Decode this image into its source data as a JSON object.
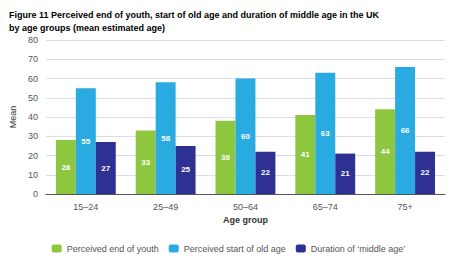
{
  "chart_data": {
    "type": "bar",
    "title": "Figure 11 Perceived end of youth, start of old age and duration of middle age in the UK\nby age groups (mean estimated age)",
    "categories": [
      "15–24",
      "25–49",
      "50–64",
      "65–74",
      "75+"
    ],
    "series": [
      {
        "name": "Perceived end of youth",
        "color": "#8dc63f",
        "values": [
          28,
          33,
          38,
          41,
          44
        ]
      },
      {
        "name": "Perceived start of old age",
        "color": "#29abe2",
        "values": [
          55,
          58,
          60,
          63,
          66
        ]
      },
      {
        "name": "Duration of ‘middle age’",
        "color": "#2e3192",
        "values": [
          27,
          25,
          22,
          21,
          22
        ]
      }
    ],
    "xlabel": "Age group",
    "ylabel": "Mean",
    "ylim": [
      0,
      80
    ],
    "yticks": [
      0,
      10,
      20,
      30,
      40,
      50,
      60,
      70,
      80
    ],
    "grid": true,
    "legend": "bottom",
    "data_labels": true
  }
}
